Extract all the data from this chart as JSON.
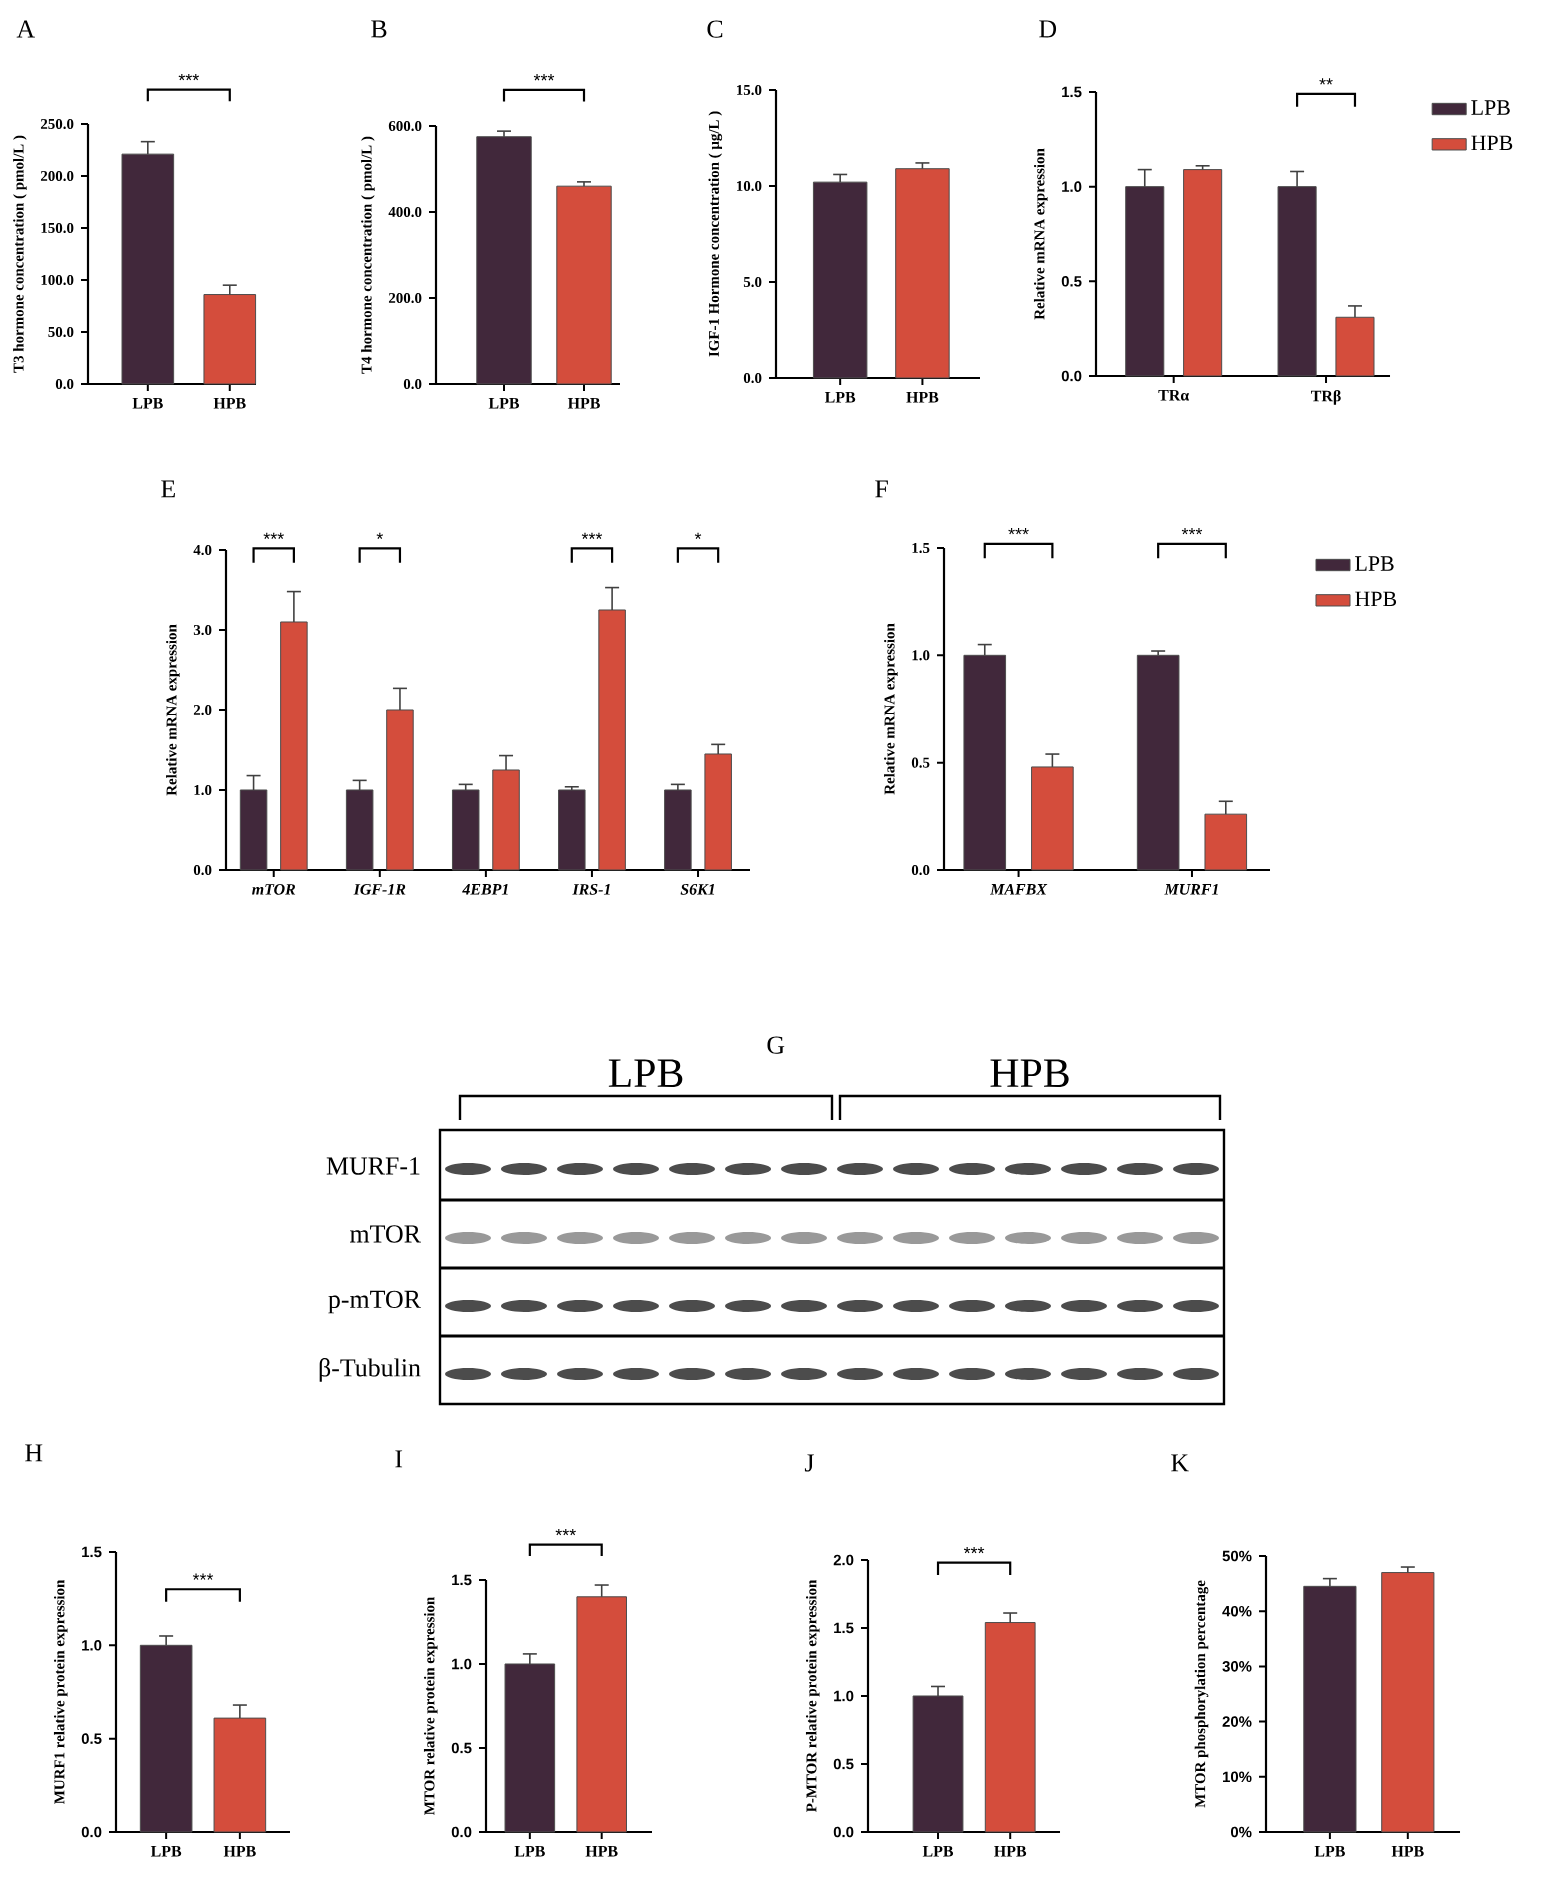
{
  "chart_data": [
    {
      "type": "bar",
      "title": "A",
      "ylabel": "T3 hormone concentration ( pmol/L )",
      "categories": [
        "LPB",
        "HPB"
      ],
      "values": [
        221,
        86
      ],
      "errors": [
        12,
        9
      ],
      "colors": [
        "#41283b",
        "#d44d3c"
      ],
      "ylim": [
        0,
        250
      ],
      "yticks": [
        {
          "value": 0,
          "label": "0.0"
        },
        {
          "value": 50,
          "label": "50.0"
        },
        {
          "value": 100,
          "label": "100.0"
        },
        {
          "value": 150,
          "label": "150.0"
        },
        {
          "value": 200,
          "label": "200.0"
        },
        {
          "value": 250,
          "label": "250.0"
        }
      ],
      "annotations": [
        "***"
      ]
    },
    {
      "type": "bar",
      "title": "B",
      "ylabel": "T4 hormone concentration ( pmol/L )",
      "categories": [
        "LPB",
        "HPB"
      ],
      "values": [
        575,
        460
      ],
      "errors": [
        13,
        10
      ],
      "colors": [
        "#41283b",
        "#d44d3c"
      ],
      "ylim": [
        0,
        600
      ],
      "yticks": [
        {
          "value": 0,
          "label": "0.0"
        },
        {
          "value": 200,
          "label": "200.0"
        },
        {
          "value": 400,
          "label": "400.0"
        },
        {
          "value": 600,
          "label": "600.0"
        }
      ],
      "annotations": [
        "***"
      ]
    },
    {
      "type": "bar",
      "title": "C",
      "ylabel": "IGF-1 Hormone concentration ( μg/L )",
      "categories": [
        "LPB",
        "HPB"
      ],
      "values": [
        10.2,
        10.9
      ],
      "errors": [
        0.4,
        0.3
      ],
      "colors": [
        "#41283b",
        "#d44d3c"
      ],
      "ylim": [
        0,
        15
      ],
      "yticks": [
        {
          "value": 0,
          "label": "0.0"
        },
        {
          "value": 5,
          "label": "5.0"
        },
        {
          "value": 10,
          "label": "10.0"
        },
        {
          "value": 15,
          "label": "15.0"
        }
      ]
    },
    {
      "type": "bar",
      "title": "D",
      "ylabel": "Relative mRNA expression",
      "categories": [
        "TRα",
        "TRβ"
      ],
      "legend": "right",
      "series": [
        {
          "name": "LPB",
          "color": "#41283b",
          "values": [
            1.0,
            1.0
          ],
          "errors": [
            0.09,
            0.08
          ]
        },
        {
          "name": "HPB",
          "color": "#d44d3c",
          "values": [
            1.09,
            0.31
          ],
          "errors": [
            0.02,
            0.06
          ]
        }
      ],
      "ylim": [
        0,
        1.5
      ],
      "yticks": [
        {
          "value": 0,
          "label": "0.0"
        },
        {
          "value": 0.5,
          "label": "0.5"
        },
        {
          "value": 1,
          "label": "1.0"
        },
        {
          "value": 1.5,
          "label": "1.5"
        }
      ],
      "annotations": [
        "**"
      ]
    },
    {
      "type": "bar",
      "title": "E",
      "ylabel": "Relative mRNA expression",
      "categories": [
        "mTOR",
        "IGF-1R",
        "4EBP1",
        "IRS-1",
        "S6K1"
      ],
      "series": [
        {
          "color": "#41283b",
          "values": [
            1.0,
            1.0,
            1.0,
            1.0,
            1.0
          ],
          "errors": [
            0.18,
            0.12,
            0.07,
            0.04,
            0.07
          ]
        },
        {
          "color": "#d44d3c",
          "values": [
            3.1,
            2.0,
            1.25,
            3.25,
            1.45
          ],
          "errors": [
            0.38,
            0.27,
            0.18,
            0.28,
            0.12
          ]
        }
      ],
      "ylim": [
        0,
        4
      ],
      "yticks": [
        {
          "value": 0,
          "label": "0.0"
        },
        {
          "value": 1,
          "label": "1.0"
        },
        {
          "value": 2,
          "label": "2.0"
        },
        {
          "value": 3,
          "label": "3.0"
        },
        {
          "value": 4,
          "label": "4.0"
        }
      ],
      "annotations": [
        "***",
        "*",
        "***",
        "*"
      ]
    },
    {
      "type": "bar",
      "title": "F",
      "ylabel": "Relative mRNA expression",
      "categories": [
        "MAFBX",
        "MURF1"
      ],
      "legend": "right",
      "series": [
        {
          "name": "LPB",
          "color": "#41283b",
          "values": [
            1.0,
            1.0
          ],
          "errors": [
            0.05,
            0.02
          ]
        },
        {
          "name": "HPB",
          "color": "#d44d3c",
          "values": [
            0.48,
            0.26
          ],
          "errors": [
            0.06,
            0.06
          ]
        }
      ],
      "ylim": [
        0,
        1.5
      ],
      "yticks": [
        {
          "value": 0,
          "label": "0.0"
        },
        {
          "value": 0.5,
          "label": "0.5"
        },
        {
          "value": 1,
          "label": "1.0"
        },
        {
          "value": 1.5,
          "label": "1.5"
        }
      ],
      "annotations": [
        "***",
        "***"
      ]
    },
    {
      "type": "other",
      "title": "G",
      "annotations": [
        "LPB",
        "HPB",
        "MURF-1",
        "mTOR",
        "p-mTOR",
        "β-Tubulin"
      ]
    },
    {
      "type": "bar",
      "title": "H",
      "ylabel": "MURF1 relative protein expression",
      "categories": [
        "LPB",
        "HPB"
      ],
      "values": [
        1.0,
        0.61
      ],
      "errors": [
        0.05,
        0.07
      ],
      "colors": [
        "#41283b",
        "#d44d3c"
      ],
      "ylim": [
        0,
        1.5
      ],
      "yticks": [
        {
          "value": 0,
          "label": "0.0"
        },
        {
          "value": 0.5,
          "label": "0.5"
        },
        {
          "value": 1,
          "label": "1.0"
        },
        {
          "value": 1.5,
          "label": "1.5"
        }
      ],
      "annotations": [
        "***"
      ]
    },
    {
      "type": "bar",
      "title": "I",
      "ylabel": "MTOR relative protein expression",
      "categories": [
        "LPB",
        "HPB"
      ],
      "values": [
        1.0,
        1.4
      ],
      "errors": [
        0.06,
        0.07
      ],
      "colors": [
        "#41283b",
        "#d44d3c"
      ],
      "ylim": [
        0,
        1.5
      ],
      "yticks": [
        {
          "value": 0,
          "label": "0.0"
        },
        {
          "value": 0.5,
          "label": "0.5"
        },
        {
          "value": 1,
          "label": "1.0"
        },
        {
          "value": 1.5,
          "label": "1.5"
        }
      ],
      "annotations": [
        "***"
      ]
    },
    {
      "type": "bar",
      "title": "J",
      "ylabel": "P-MTOR relative protein expression",
      "categories": [
        "LPB",
        "HPB"
      ],
      "values": [
        1.0,
        1.54
      ],
      "errors": [
        0.07,
        0.07
      ],
      "colors": [
        "#41283b",
        "#d44d3c"
      ],
      "ylim": [
        0,
        2
      ],
      "yticks": [
        {
          "value": 0,
          "label": "0.0"
        },
        {
          "value": 0.5,
          "label": "0.5"
        },
        {
          "value": 1,
          "label": "1.0"
        },
        {
          "value": 1.5,
          "label": "1.5"
        },
        {
          "value": 2,
          "label": "2.0"
        }
      ],
      "annotations": [
        "***"
      ]
    },
    {
      "type": "bar",
      "title": "K",
      "ylabel": "MTOR phosphorylation percentage",
      "categories": [
        "LPB",
        "HPB"
      ],
      "values": [
        44.5,
        47
      ],
      "errors": [
        1.4,
        1.0
      ],
      "colors": [
        "#41283b",
        "#d44d3c"
      ],
      "ylim": [
        0,
        50
      ],
      "yticks": [
        {
          "value": 0,
          "label": "0%"
        },
        {
          "value": 10,
          "label": "10%"
        },
        {
          "value": 20,
          "label": "20%"
        },
        {
          "value": 30,
          "label": "30%"
        },
        {
          "value": 40,
          "label": "40%"
        },
        {
          "value": 50,
          "label": "50%"
        }
      ]
    }
  ]
}
